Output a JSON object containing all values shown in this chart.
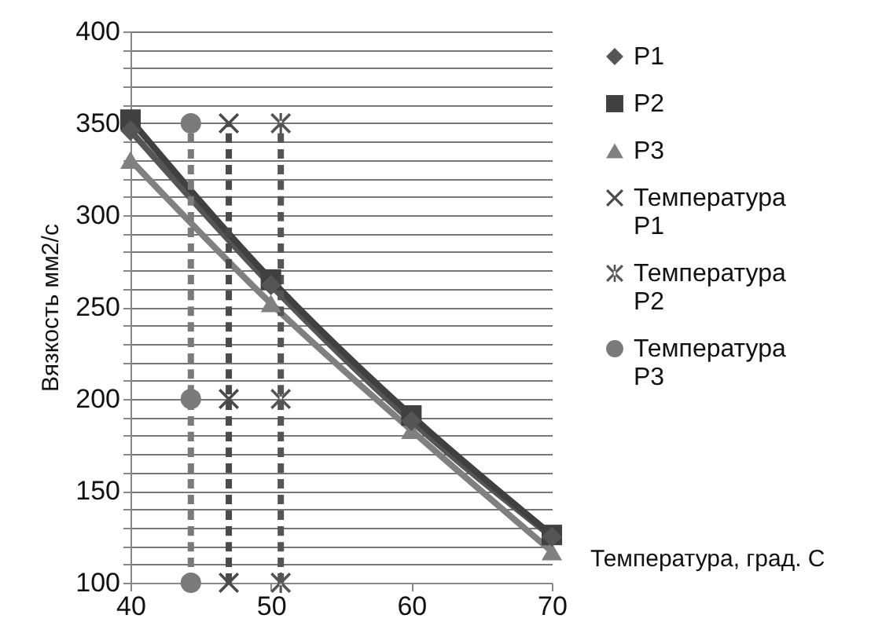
{
  "chart_data": {
    "type": "line",
    "xlabel": "Температура, град. С",
    "ylabel": "Вязкость мм2/с",
    "x": [
      40,
      50,
      60,
      70
    ],
    "series": [
      {
        "name": "P1",
        "color": "#555555",
        "marker": "diamond",
        "line_style": "solid",
        "values": [
          346,
          262,
          188,
          125
        ]
      },
      {
        "name": "P2",
        "color": "#404040",
        "marker": "square",
        "line_style": "solid",
        "values": [
          352,
          265,
          191,
          126
        ]
      },
      {
        "name": "P3",
        "color": "#808080",
        "marker": "triangle",
        "line_style": "solid",
        "values": [
          330,
          252,
          183,
          117
        ]
      },
      {
        "name": "Температура P1",
        "color": "#4a4a4a",
        "marker": "cross",
        "line_style": "dashed",
        "x": [
          47,
          47,
          47
        ],
        "values": [
          100,
          200,
          350
        ]
      },
      {
        "name": "Температура P2",
        "color": "#555555",
        "marker": "star",
        "line_style": "dashed",
        "x": [
          50.7,
          50.7,
          50.7
        ],
        "values": [
          100,
          200,
          350
        ]
      },
      {
        "name": "Температура P3",
        "color": "#7a7a7a",
        "marker": "circle",
        "line_style": "dashed",
        "x": [
          44.3,
          44.3,
          44.3
        ],
        "values": [
          100,
          200,
          350
        ]
      }
    ],
    "xlim": [
      40,
      70
    ],
    "xticks": [
      40,
      50,
      60,
      70
    ],
    "ylim": [
      100,
      400
    ],
    "yticks": [
      100,
      {
        "value": 110,
        "label": null
      },
      {
        "value": 120,
        "label": null
      },
      {
        "value": 130,
        "label": null
      },
      {
        "value": 140,
        "label": null
      },
      150,
      {
        "value": 160,
        "label": null
      },
      {
        "value": 170,
        "label": null
      },
      {
        "value": 180,
        "label": null
      },
      {
        "value": 190,
        "label": null
      },
      200,
      {
        "value": 210,
        "label": null
      },
      {
        "value": 220,
        "label": null
      },
      {
        "value": 230,
        "label": null
      },
      {
        "value": 240,
        "label": null
      },
      250,
      {
        "value": 260,
        "label": null
      },
      {
        "value": 270,
        "label": null
      },
      {
        "value": 280,
        "label": null
      },
      {
        "value": 290,
        "label": null
      },
      300,
      {
        "value": 310,
        "label": null
      },
      {
        "value": 320,
        "label": null
      },
      {
        "value": 330,
        "label": null
      },
      {
        "value": 340,
        "label": null
      },
      350,
      {
        "value": 360,
        "label": null
      },
      {
        "value": 370,
        "label": null
      },
      {
        "value": 380,
        "label": null
      },
      {
        "value": 390,
        "label": null
      },
      400
    ],
    "grid": "y",
    "legend": "right"
  }
}
